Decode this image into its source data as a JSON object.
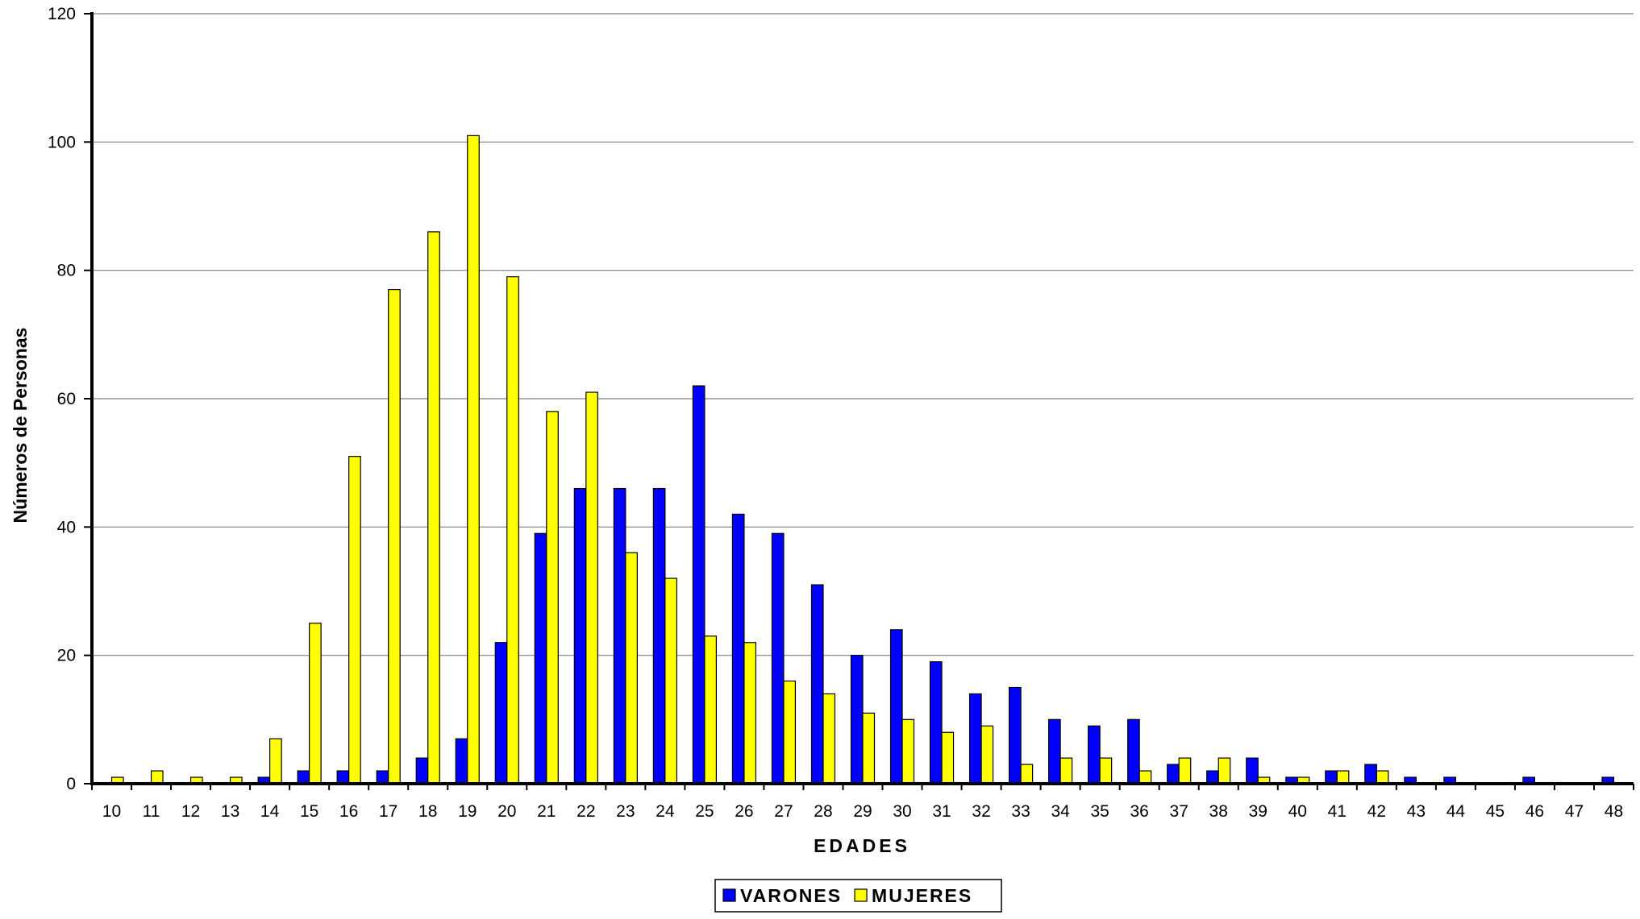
{
  "chart_data": {
    "type": "bar",
    "title": "",
    "xlabel": "EDADES",
    "ylabel": "Números de Personas",
    "ylim": [
      0,
      120
    ],
    "yticks": [
      0,
      20,
      40,
      60,
      80,
      100,
      120
    ],
    "grid": true,
    "legend_position": "bottom-center",
    "categories": [
      "10",
      "11",
      "12",
      "13",
      "14",
      "15",
      "16",
      "17",
      "18",
      "19",
      "20",
      "21",
      "22",
      "23",
      "24",
      "25",
      "26",
      "27",
      "28",
      "29",
      "30",
      "31",
      "32",
      "33",
      "34",
      "35",
      "36",
      "37",
      "38",
      "39",
      "40",
      "41",
      "42",
      "43",
      "44",
      "45",
      "46",
      "47",
      "48"
    ],
    "series": [
      {
        "name": "VARONES",
        "color": "#0000FF",
        "values": [
          0,
          0,
          0,
          0,
          1,
          2,
          2,
          2,
          4,
          7,
          22,
          39,
          46,
          46,
          46,
          62,
          42,
          39,
          31,
          20,
          24,
          19,
          14,
          15,
          10,
          9,
          10,
          3,
          2,
          4,
          1,
          2,
          3,
          1,
          1,
          0,
          1,
          0,
          1
        ]
      },
      {
        "name": "MUJERES",
        "color": "#FFFF00",
        "values": [
          1,
          2,
          1,
          1,
          7,
          25,
          51,
          77,
          86,
          101,
          79,
          58,
          61,
          36,
          32,
          23,
          22,
          16,
          14,
          11,
          10,
          8,
          9,
          3,
          4,
          4,
          2,
          4,
          4,
          1,
          1,
          2,
          2,
          0,
          0,
          0,
          0,
          0,
          0
        ]
      }
    ]
  }
}
